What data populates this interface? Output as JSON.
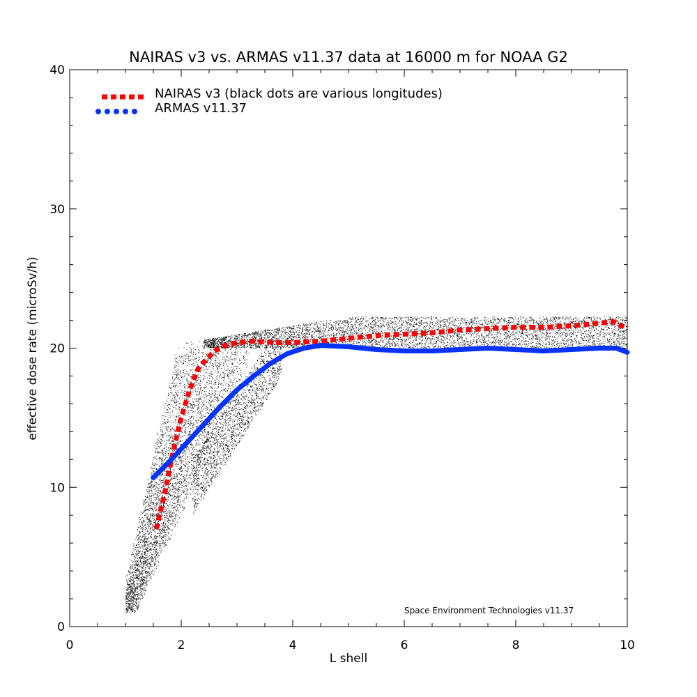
{
  "chart_data": {
    "type": "line",
    "title": "NAIRAS  v3 vs. ARMAS v11.37 data at 16000 m for NOAA G2",
    "xlabel": "L shell",
    "ylabel": "effective dose rate (microSv/h)",
    "xlim": [
      0,
      10
    ],
    "ylim": [
      0,
      40
    ],
    "xticks": [
      "0",
      "2",
      "4",
      "6",
      "8",
      "10"
    ],
    "yticks": [
      "0",
      "10",
      "20",
      "30",
      "40"
    ],
    "grid": false,
    "legend_position": "top-left",
    "annotation": "Space Environment Technologies v11.37",
    "series": [
      {
        "name": "NAIRAS v3 (black dots are various longitudes)",
        "color": "#ff0000",
        "style": "dashed",
        "points": [
          [
            1.55,
            7.0
          ],
          [
            1.7,
            9.5
          ],
          [
            1.85,
            12.5
          ],
          [
            2.0,
            15.0
          ],
          [
            2.15,
            17.0
          ],
          [
            2.3,
            18.5
          ],
          [
            2.45,
            19.2
          ],
          [
            2.6,
            19.8
          ],
          [
            2.8,
            20.2
          ],
          [
            3.0,
            20.4
          ],
          [
            3.3,
            20.5
          ],
          [
            3.7,
            20.4
          ],
          [
            4.0,
            20.4
          ],
          [
            4.5,
            20.5
          ],
          [
            5.0,
            20.7
          ],
          [
            5.5,
            20.9
          ],
          [
            6.0,
            21.0
          ],
          [
            6.5,
            21.1
          ],
          [
            7.0,
            21.3
          ],
          [
            7.5,
            21.4
          ],
          [
            8.0,
            21.5
          ],
          [
            8.5,
            21.5
          ],
          [
            9.0,
            21.6
          ],
          [
            9.5,
            21.8
          ],
          [
            9.75,
            21.9
          ],
          [
            10.0,
            21.4
          ]
        ]
      },
      {
        "name": "ARMAS v11.37",
        "color": "#0033ff",
        "style": "solid",
        "points": [
          [
            1.5,
            10.7
          ],
          [
            1.8,
            11.9
          ],
          [
            2.1,
            13.2
          ],
          [
            2.4,
            14.5
          ],
          [
            2.7,
            15.8
          ],
          [
            3.0,
            17.0
          ],
          [
            3.3,
            18.0
          ],
          [
            3.6,
            18.9
          ],
          [
            3.9,
            19.6
          ],
          [
            4.2,
            20.0
          ],
          [
            4.5,
            20.2
          ],
          [
            5.0,
            20.1
          ],
          [
            5.5,
            19.9
          ],
          [
            6.0,
            19.8
          ],
          [
            6.5,
            19.8
          ],
          [
            7.0,
            19.9
          ],
          [
            7.5,
            20.0
          ],
          [
            8.0,
            19.9
          ],
          [
            8.5,
            19.8
          ],
          [
            9.0,
            19.9
          ],
          [
            9.5,
            20.0
          ],
          [
            9.8,
            20.0
          ],
          [
            10.0,
            19.7
          ]
        ]
      }
    ]
  }
}
